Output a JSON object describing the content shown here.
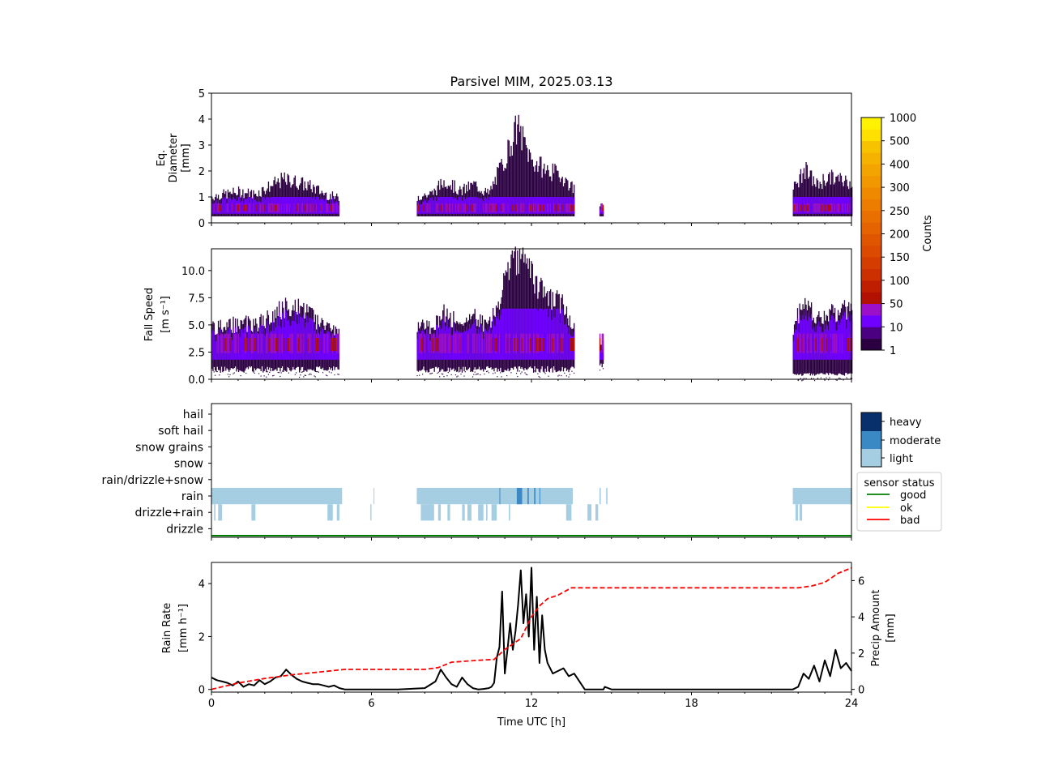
{
  "title": "Parsivel MIM, 2025.03.13",
  "colors": {
    "counts_scale": [
      "#2b0040",
      "#4a0080",
      "#7000ff",
      "#9b10c8",
      "#b21000",
      "#c01e00",
      "#cc3000",
      "#d43c00",
      "#db4a00",
      "#e05600",
      "#e56300",
      "#e97000",
      "#ec7d00",
      "#ef8a00",
      "#f19700",
      "#f3a400",
      "#f5b200",
      "#f7c200",
      "#ffe000",
      "#fff200"
    ],
    "intensity": {
      "light": "#a6cee3",
      "moderate": "#3a88c4",
      "heavy": "#08306b"
    },
    "status": {
      "good": "#008000",
      "ok": "#ffff00",
      "bad": "#ff0000"
    },
    "rain_rate_line": "#000000",
    "precip_line": "#ff0000"
  },
  "chart_data": [
    {
      "type": "heatmap",
      "name": "diameter",
      "ylabel": [
        "Eq.",
        "Diameter",
        "[mm]"
      ],
      "ylim": [
        0,
        5
      ],
      "yticks": [
        "0",
        "1",
        "2",
        "3",
        "4",
        "5"
      ],
      "xlim": [
        0,
        24
      ],
      "segments": [
        {
          "x": [
            0.0,
            4.8
          ],
          "d_max": [
            1.1,
            1.2,
            1.3,
            1.2,
            1.5,
            1.8,
            1.7,
            1.5,
            1.2,
            1.0
          ]
        },
        {
          "x": [
            7.7,
            13.6
          ],
          "d_max": [
            1.1,
            1.2,
            1.8,
            1.3,
            1.6,
            1.2,
            2.5,
            4.0,
            2.6,
            2.2,
            2.0,
            1.4
          ]
        },
        {
          "x": [
            14.55,
            14.7
          ],
          "d_max": [
            0.7,
            0.8
          ]
        },
        {
          "x": [
            21.8,
            24.0
          ],
          "d_max": [
            1.4,
            2.2,
            1.6,
            1.9,
            1.8,
            1.7
          ]
        }
      ],
      "peak_counts_d": 0.6
    },
    {
      "type": "heatmap",
      "name": "fall_speed",
      "ylabel": [
        "Fall Speed",
        "[m s⁻¹]"
      ],
      "ylim": [
        0,
        12
      ],
      "yticks": [
        "0.0",
        "2.5",
        "5.0",
        "7.5",
        "10.0"
      ],
      "ytick_values": [
        0,
        2.5,
        5,
        7.5,
        10
      ],
      "xlim": [
        0,
        24
      ],
      "segments": [
        {
          "x": [
            0.0,
            4.8
          ],
          "v_min": 1.0,
          "v_max": [
            5.0,
            5.0,
            5.5,
            5.2,
            6.0,
            7.0,
            7.0,
            6.0,
            5.2,
            4.5
          ]
        },
        {
          "x": [
            7.7,
            13.6
          ],
          "v_min": 1.0,
          "v_max": [
            5.0,
            5.0,
            6.5,
            5.0,
            6.0,
            5.0,
            9.0,
            12.0,
            10.0,
            8.0,
            7.5,
            5.0
          ]
        },
        {
          "x": [
            14.55,
            14.7
          ],
          "v_min": 1.5,
          "v_max": [
            3.0,
            3.5
          ]
        },
        {
          "x": [
            21.8,
            24.0
          ],
          "v_min": 0.5,
          "v_max": [
            5.0,
            8.0,
            6.0,
            6.5,
            6.5,
            7.0
          ]
        }
      ]
    },
    {
      "type": "heatmap",
      "name": "precip_type",
      "categories": [
        "hail",
        "soft hail",
        "snow grains",
        "snow",
        "rain/drizzle+snow",
        "rain",
        "drizzle+rain",
        "drizzle"
      ],
      "xlim": [
        0,
        24
      ],
      "rain_light": [
        [
          0.0,
          4.9
        ],
        [
          6.08,
          6.1
        ],
        [
          7.7,
          13.55
        ],
        [
          14.55,
          14.6
        ],
        [
          14.8,
          14.85
        ],
        [
          21.8,
          24.0
        ]
      ],
      "rain_moderate": [
        [
          10.8,
          10.82
        ],
        [
          11.45,
          11.65
        ],
        [
          11.85,
          11.9
        ],
        [
          12.1,
          12.15
        ],
        [
          12.3,
          12.32
        ]
      ],
      "drizzle_rain_light": [
        [
          0.1,
          0.15
        ],
        [
          0.25,
          0.4
        ],
        [
          1.5,
          1.65
        ],
        [
          4.35,
          4.55
        ],
        [
          4.7,
          4.8
        ],
        [
          5.96,
          6.0
        ],
        [
          7.85,
          8.35
        ],
        [
          8.5,
          8.6
        ],
        [
          8.85,
          8.95
        ],
        [
          9.4,
          9.5
        ],
        [
          9.6,
          9.75
        ],
        [
          10.0,
          10.2
        ],
        [
          10.3,
          10.35
        ],
        [
          10.5,
          10.7
        ],
        [
          11.15,
          11.2
        ],
        [
          13.3,
          13.5
        ],
        [
          14.1,
          14.25
        ],
        [
          14.4,
          14.5
        ],
        [
          21.9,
          22.0
        ],
        [
          22.05,
          22.15
        ]
      ],
      "status_good_line": [
        0,
        24
      ],
      "intensity_legend": [
        "heavy",
        "moderate",
        "light"
      ],
      "status_legend": {
        "title": "sensor status",
        "items": [
          "good",
          "ok",
          "bad"
        ]
      }
    },
    {
      "type": "line",
      "name": "rain",
      "xlabel": "Time UTC [h]",
      "ylabel": [
        "Rain Rate",
        "[mm h⁻¹]"
      ],
      "y2label": [
        "Precip Amount",
        "[mm]"
      ],
      "xlim": [
        0,
        24
      ],
      "xticks": [
        "0",
        "6",
        "12",
        "18",
        "24"
      ],
      "ylim": [
        -0.1,
        4.8
      ],
      "yticks": [
        "0",
        "2",
        "4"
      ],
      "y2lim": [
        -0.15,
        7.0
      ],
      "y2ticks": [
        "0",
        "2",
        "4",
        "6"
      ],
      "series": [
        {
          "axis": "left",
          "style": "solid",
          "x": [
            0,
            0.2,
            0.4,
            0.6,
            0.8,
            1.0,
            1.2,
            1.4,
            1.6,
            1.8,
            2.0,
            2.2,
            2.4,
            2.6,
            2.8,
            3.0,
            3.2,
            3.4,
            3.6,
            3.8,
            4.0,
            4.2,
            4.4,
            4.6,
            4.8,
            5.0,
            6.0,
            7.0,
            8.0,
            8.4,
            8.6,
            8.8,
            9.0,
            9.2,
            9.4,
            9.6,
            9.8,
            10.0,
            10.2,
            10.4,
            10.5,
            10.6,
            10.7,
            10.8,
            10.9,
            11.0,
            11.1,
            11.2,
            11.3,
            11.4,
            11.5,
            11.6,
            11.7,
            11.8,
            11.9,
            12.0,
            12.1,
            12.2,
            12.3,
            12.4,
            12.5,
            12.6,
            12.8,
            13.0,
            13.2,
            13.4,
            13.6,
            13.8,
            14.0,
            14.5,
            14.7,
            14.75,
            15.0,
            16,
            18,
            20,
            21.5,
            21.8,
            22.0,
            22.2,
            22.4,
            22.6,
            22.8,
            23.0,
            23.2,
            23.4,
            23.6,
            23.8,
            24.0
          ],
          "values": [
            0.45,
            0.35,
            0.3,
            0.25,
            0.15,
            0.3,
            0.1,
            0.2,
            0.15,
            0.35,
            0.2,
            0.3,
            0.45,
            0.5,
            0.75,
            0.55,
            0.4,
            0.3,
            0.25,
            0.2,
            0.2,
            0.15,
            0.1,
            0.15,
            0.05,
            0.0,
            0.0,
            0.0,
            0.05,
            0.3,
            0.75,
            0.45,
            0.2,
            0.1,
            0.45,
            0.2,
            0.05,
            0.0,
            0.02,
            0.05,
            0.1,
            0.25,
            1.2,
            1.6,
            3.7,
            0.6,
            1.5,
            2.5,
            1.5,
            2.2,
            3.2,
            4.5,
            2.5,
            3.6,
            2.0,
            4.6,
            1.5,
            3.5,
            1.0,
            2.8,
            1.5,
            1.0,
            0.6,
            0.7,
            0.8,
            0.5,
            0.6,
            0.3,
            0.0,
            0.0,
            0.0,
            0.1,
            0.0,
            0,
            0,
            0,
            0,
            0.0,
            0.1,
            0.6,
            0.4,
            0.9,
            0.3,
            1.1,
            0.5,
            1.5,
            0.8,
            1.0,
            0.7
          ]
        },
        {
          "axis": "right",
          "style": "dashed",
          "x": [
            0,
            1,
            2,
            3,
            4,
            5,
            6,
            7,
            8,
            8.5,
            9.0,
            10.0,
            10.6,
            11.0,
            11.3,
            11.6,
            11.8,
            12.0,
            12.3,
            12.6,
            13.0,
            13.5,
            14,
            16,
            18,
            20,
            21.5,
            22,
            22.5,
            23,
            23.5,
            24
          ],
          "values": [
            0.0,
            0.35,
            0.6,
            0.8,
            0.95,
            1.1,
            1.1,
            1.1,
            1.1,
            1.2,
            1.5,
            1.6,
            1.65,
            2.2,
            2.5,
            2.8,
            3.4,
            4.0,
            4.6,
            5.0,
            5.2,
            5.6,
            5.6,
            5.6,
            5.6,
            5.6,
            5.6,
            5.6,
            5.7,
            5.9,
            6.4,
            6.7
          ]
        }
      ]
    }
  ],
  "colorbar": {
    "label": "Counts",
    "ticks": [
      "1000",
      "500",
      "400",
      "300",
      "250",
      "200",
      "150",
      "100",
      "50",
      "10",
      "1"
    ]
  }
}
